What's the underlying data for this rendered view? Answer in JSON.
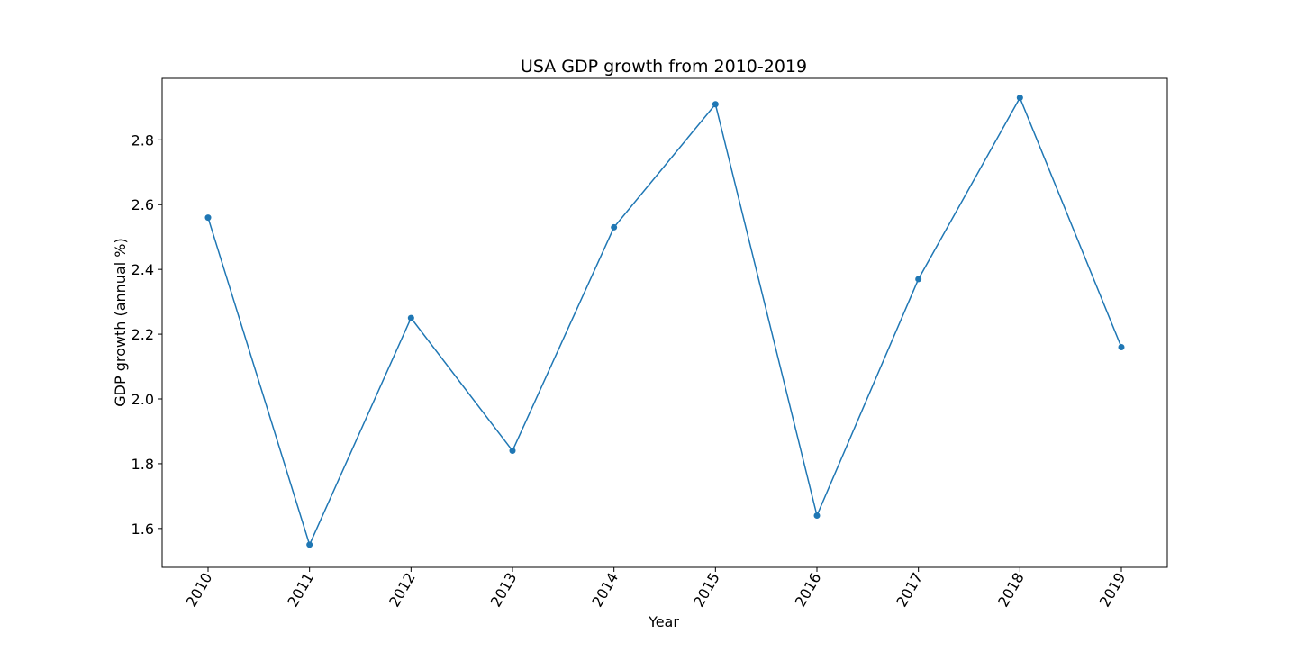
{
  "chart_data": {
    "type": "line",
    "title": "USA GDP growth from 2010-2019",
    "xlabel": "Year",
    "ylabel": "GDP growth (annual %)",
    "categories": [
      "2010",
      "2011",
      "2012",
      "2013",
      "2014",
      "2015",
      "2016",
      "2017",
      "2018",
      "2019"
    ],
    "series": [
      {
        "values": [
          2.56,
          1.55,
          2.25,
          1.84,
          2.53,
          2.91,
          1.64,
          2.37,
          2.93,
          2.16
        ],
        "color": "#1f77b4",
        "marker": "circle"
      }
    ],
    "ylim": [
      1.48,
      2.99
    ],
    "yticks": [
      "1.6",
      "1.8",
      "2.0",
      "2.2",
      "2.4",
      "2.6",
      "2.8"
    ],
    "xtick_rotation_deg": 60,
    "grid": false,
    "legend": "none"
  }
}
